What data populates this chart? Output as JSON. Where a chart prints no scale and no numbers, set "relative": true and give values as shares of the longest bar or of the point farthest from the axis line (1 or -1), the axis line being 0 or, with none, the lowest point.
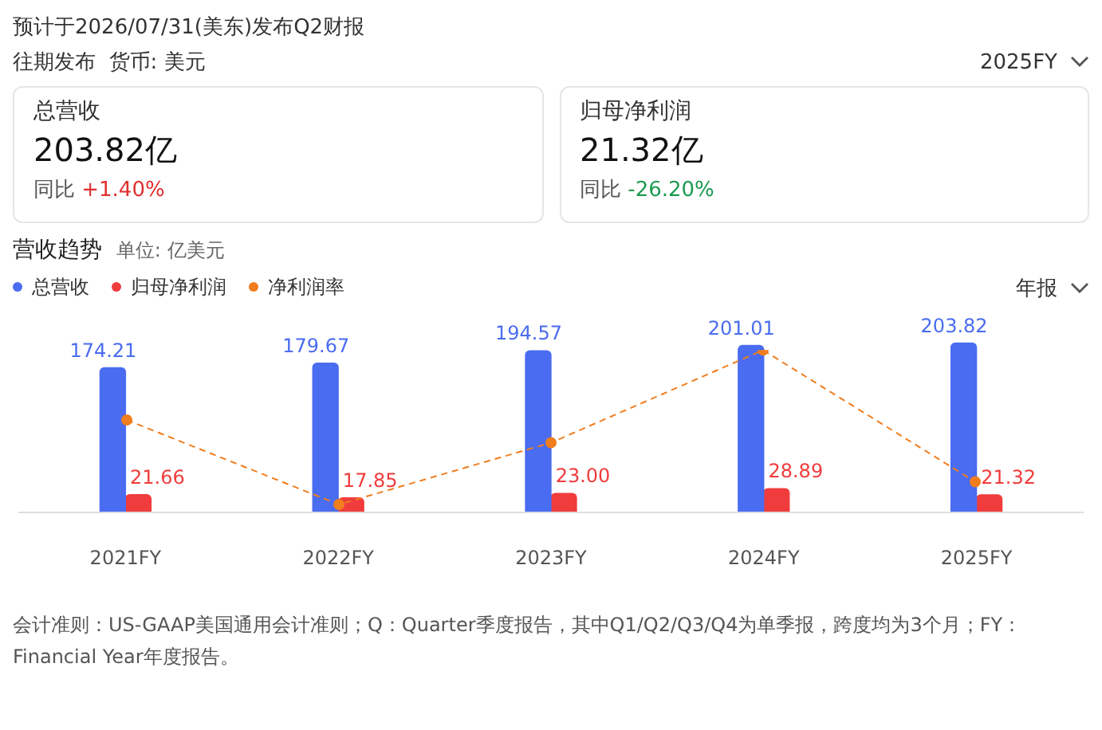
{
  "chart_data": [
    {
      "type": "other",
      "title": "预计于2026/07/31(美东)发布Q2财报",
      "subtitle": "往期发布",
      "annotations": [
        "货币: 美元",
        "2025FY",
        "总营收",
        "203.82亿",
        "同比",
        "+1.40%",
        "归母净利润",
        "21.32亿",
        "同比",
        "-26.20%"
      ]
    },
    {
      "type": "bar",
      "title": "营收趋势",
      "subtitle": "单位: 亿美元",
      "categories": [
        "2021FY",
        "2022FY",
        "2023FY",
        "2024FY",
        "2025FY"
      ],
      "series": [
        {
          "name": "总营收",
          "color": "#4a6cf0",
          "values": [
            174.21,
            179.67,
            194.57,
            201.01,
            203.82
          ],
          "value_labels": [
            "174.21",
            "179.67",
            "194.57",
            "201.01",
            "203.82"
          ]
        },
        {
          "name": "归母净利润",
          "color": "#f03c3c",
          "values": [
            21.66,
            17.85,
            23.0,
            28.89,
            21.32
          ],
          "value_labels": [
            "21.66",
            "17.85",
            "23.00",
            "28.89",
            "21.32"
          ]
        }
      ],
      "ylim": [
        0,
        210
      ],
      "tick_labels": "x",
      "legend": "top left",
      "annotations": [
        "年报",
        "会计准则：US-GAAP美国通用会计准则；Q：Quarter季度报告，其中Q1/Q2/Q3/Q4为单季报，跨度均为3个月；FY：Financial Year年度报告。"
      ]
    },
    {
      "type": "line",
      "categories": [
        null,
        null,
        null,
        null,
        null
      ],
      "relative": true,
      "tick_labels": false,
      "legend": "top left",
      "series": [
        {
          "name": "净利润率",
          "color": "#f07d1e",
          "values": [
            0.57,
            0.05,
            0.43,
            1,
            0.19
          ],
          "line_style": "dashed",
          "marker": "circle"
        }
      ]
    }
  ]
}
